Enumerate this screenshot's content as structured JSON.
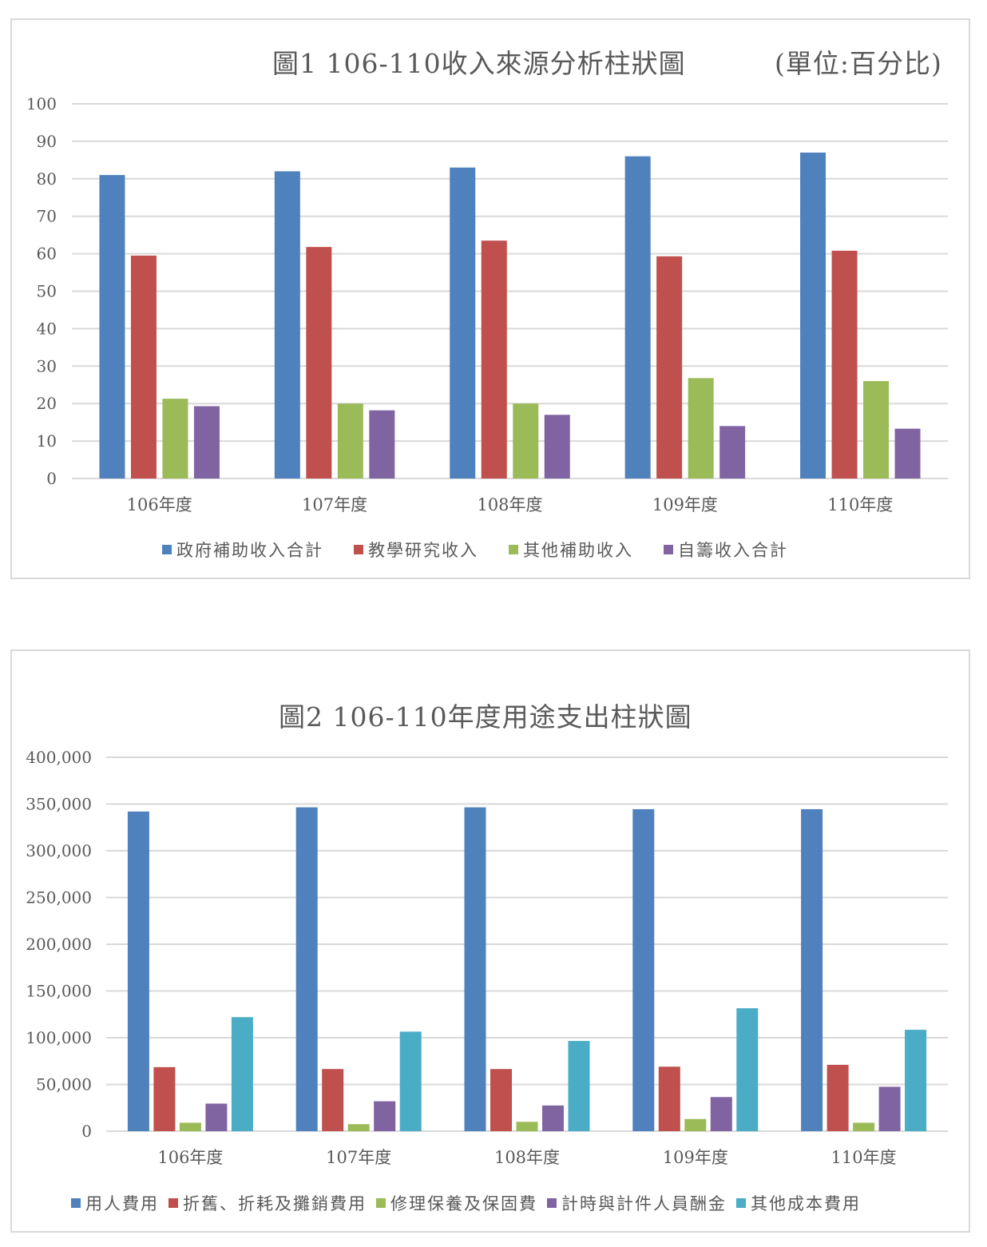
{
  "chart_data": [
    {
      "type": "bar",
      "title": "圖1 106-110收入來源分析柱狀圖",
      "unit_note": "(單位:百分比)",
      "categories": [
        "106年度",
        "107年度",
        "108年度",
        "109年度",
        "110年度"
      ],
      "ylim": [
        0,
        100
      ],
      "yticks": [
        0,
        10,
        20,
        30,
        40,
        50,
        60,
        70,
        80,
        90,
        100
      ],
      "ytick_labels": [
        "0",
        "10",
        "20",
        "30",
        "40",
        "50",
        "60",
        "70",
        "80",
        "90",
        "100"
      ],
      "grid": true,
      "legend_position": "bottom",
      "series": [
        {
          "name": "政府補助收入合計",
          "color": "#4f81bd",
          "values": [
            81,
            82,
            83,
            86,
            87
          ]
        },
        {
          "name": "教學研究收入",
          "color": "#c0504d",
          "values": [
            59.5,
            61.8,
            63.5,
            59.3,
            60.8
          ]
        },
        {
          "name": "其他補助收入",
          "color": "#9bbb59",
          "values": [
            21.3,
            20,
            20,
            26.8,
            26
          ]
        },
        {
          "name": "自籌收入合計",
          "color": "#8064a2",
          "values": [
            19.3,
            18.2,
            17,
            14,
            13.3
          ]
        }
      ]
    },
    {
      "type": "bar",
      "title": "圖2 106-110年度用途支出柱狀圖",
      "categories": [
        "106年度",
        "107年度",
        "108年度",
        "109年度",
        "110年度"
      ],
      "ylim": [
        0,
        400000
      ],
      "yticks": [
        0,
        50000,
        100000,
        150000,
        200000,
        250000,
        300000,
        350000,
        400000
      ],
      "ytick_labels": [
        "0",
        "50,000",
        "100,000",
        "150,000",
        "200,000",
        "250,000",
        "300,000",
        "350,000",
        "400,000"
      ],
      "grid": true,
      "legend_position": "bottom",
      "series": [
        {
          "name": "用人費用",
          "color": "#4f81bd",
          "values": [
            342000,
            346500,
            346500,
            344500,
            344500
          ]
        },
        {
          "name": "折舊、折耗及攤銷費用",
          "color": "#c0504d",
          "values": [
            68500,
            66500,
            66500,
            69000,
            71000
          ]
        },
        {
          "name": "修理保養及保固費",
          "color": "#9bbb59",
          "values": [
            9000,
            7500,
            10000,
            13000,
            9000
          ]
        },
        {
          "name": "計時與計件人員酬金",
          "color": "#8064a2",
          "values": [
            29500,
            32000,
            27500,
            36500,
            47500
          ]
        },
        {
          "name": "其他成本費用",
          "color": "#4bacc6",
          "values": [
            122000,
            106500,
            96500,
            131500,
            108500
          ]
        }
      ]
    }
  ]
}
